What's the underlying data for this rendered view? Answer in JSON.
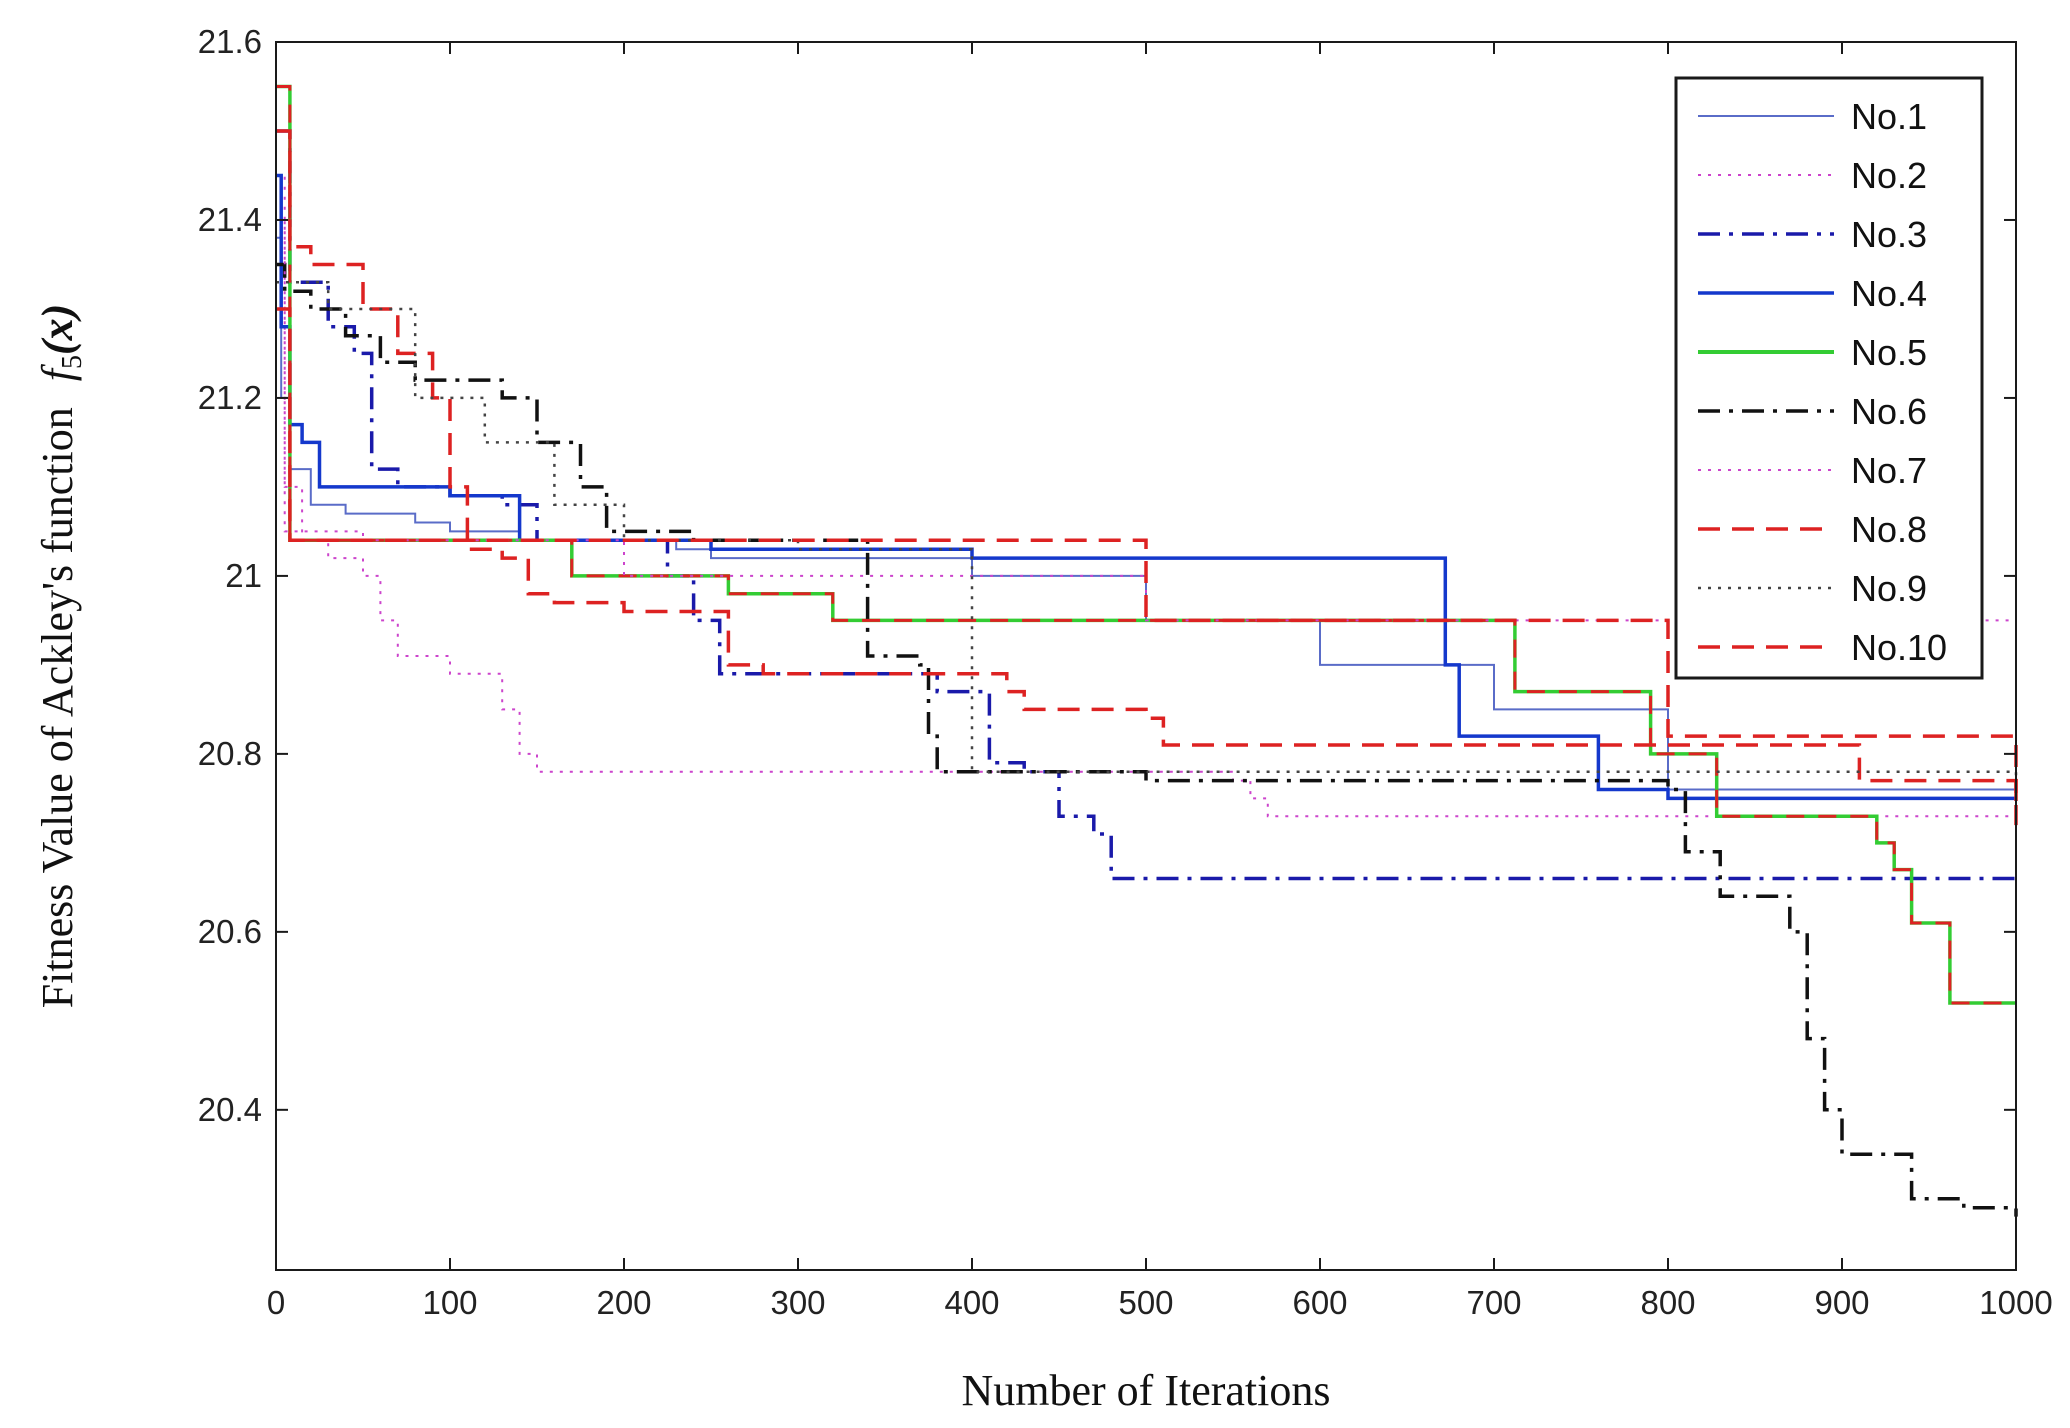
{
  "chart_data": {
    "type": "line",
    "title": "",
    "xlabel": "Number of Iterations",
    "ylabel": "Fitness Value of Ackley's function",
    "ylabel_math": "f",
    "ylabel_math_sub": "5",
    "ylabel_math_arg": "(x)",
    "xlim": [
      0,
      1000
    ],
    "ylim": [
      20.22,
      21.6
    ],
    "xticks": [
      0,
      100,
      200,
      300,
      400,
      500,
      600,
      700,
      800,
      900,
      1000
    ],
    "xtick_labels": [
      "0",
      "100",
      "200",
      "300",
      "400",
      "500",
      "600",
      "700",
      "800",
      "900",
      "1000"
    ],
    "yticks": [
      20.4,
      20.6,
      20.8,
      21.0,
      21.2,
      21.4,
      21.6
    ],
    "ytick_labels": [
      "20.4",
      "20.6",
      "20.8",
      "21",
      "21.2",
      "21.4",
      "21.6"
    ],
    "legend_position": "top-right",
    "grid": false,
    "series": [
      {
        "name": "No.1",
        "color": "#5a6cc8",
        "dash": "solid",
        "width": 2,
        "x": [
          0,
          3,
          8,
          20,
          40,
          80,
          100,
          140,
          180,
          230,
          250,
          300,
          400,
          500,
          600,
          700,
          800,
          1000
        ],
        "y": [
          21.38,
          21.2,
          21.12,
          21.08,
          21.07,
          21.06,
          21.05,
          21.04,
          21.04,
          21.03,
          21.02,
          21.02,
          21.0,
          20.95,
          20.9,
          20.85,
          20.76,
          20.75
        ]
      },
      {
        "name": "No.2",
        "color": "#cc44cc",
        "dash": "dot",
        "width": 2,
        "x": [
          0,
          5,
          15,
          30,
          50,
          60,
          70,
          100,
          130,
          140,
          150,
          200,
          300,
          400,
          550,
          560,
          570,
          600,
          700,
          800,
          900,
          1000
        ],
        "y": [
          21.45,
          21.1,
          21.04,
          21.02,
          21.0,
          20.95,
          20.91,
          20.89,
          20.85,
          20.8,
          20.78,
          20.78,
          20.78,
          20.78,
          20.77,
          20.75,
          20.73,
          20.73,
          20.73,
          20.73,
          20.73,
          20.73
        ]
      },
      {
        "name": "No.3",
        "color": "#1a1aaa",
        "dash": "dashdot",
        "width": 3.5,
        "x": [
          0,
          8,
          30,
          45,
          55,
          70,
          100,
          130,
          150,
          200,
          225,
          240,
          255,
          300,
          380,
          400,
          410,
          430,
          450,
          470,
          480,
          600,
          800,
          1000
        ],
        "y": [
          21.5,
          21.33,
          21.28,
          21.25,
          21.12,
          21.1,
          21.09,
          21.08,
          21.04,
          21.04,
          21.0,
          20.95,
          20.89,
          20.89,
          20.87,
          20.87,
          20.79,
          20.78,
          20.73,
          20.71,
          20.66,
          20.66,
          20.66,
          20.66
        ]
      },
      {
        "name": "No.4",
        "color": "#1438cc",
        "dash": "solid",
        "width": 3.5,
        "x": [
          0,
          3,
          8,
          15,
          25,
          100,
          140,
          250,
          400,
          600,
          670,
          672,
          680,
          750,
          760,
          800,
          1000
        ],
        "y": [
          21.45,
          21.28,
          21.17,
          21.15,
          21.1,
          21.09,
          21.04,
          21.03,
          21.02,
          21.02,
          21.02,
          20.9,
          20.82,
          20.82,
          20.76,
          20.75,
          20.75
        ]
      },
      {
        "name": "No.5",
        "color": "#33cc33",
        "dash": "solid",
        "width": 3.5,
        "x": [
          0,
          8,
          100,
          170,
          260,
          320,
          500,
          700,
          712,
          780,
          790,
          828,
          850,
          900,
          920,
          930,
          940,
          962,
          1000
        ],
        "y": [
          21.55,
          21.04,
          21.04,
          21.0,
          20.98,
          20.95,
          20.95,
          20.95,
          20.87,
          20.87,
          20.8,
          20.73,
          20.73,
          20.73,
          20.7,
          20.67,
          20.61,
          20.52,
          20.52
        ]
      },
      {
        "name": "No.6",
        "color": "#111111",
        "dash": "dashdot",
        "width": 3.5,
        "x": [
          0,
          5,
          20,
          40,
          60,
          80,
          130,
          150,
          175,
          190,
          240,
          300,
          335,
          340,
          370,
          375,
          380,
          400,
          500,
          600,
          700,
          800,
          810,
          830,
          840,
          870,
          880,
          890,
          900,
          930,
          940,
          970,
          1000
        ],
        "y": [
          21.35,
          21.32,
          21.3,
          21.27,
          21.24,
          21.22,
          21.2,
          21.15,
          21.1,
          21.05,
          21.04,
          21.04,
          21.04,
          20.91,
          20.9,
          20.82,
          20.78,
          20.78,
          20.77,
          20.77,
          20.77,
          20.76,
          20.69,
          20.64,
          20.64,
          20.6,
          20.48,
          20.4,
          20.35,
          20.35,
          20.3,
          20.29,
          20.28
        ]
      },
      {
        "name": "No.7",
        "color": "#cc44cc",
        "dash": "dot",
        "width": 2,
        "x": [
          0,
          5,
          50,
          200,
          500,
          1000
        ],
        "y": [
          21.4,
          21.05,
          21.04,
          21.0,
          20.95,
          20.9
        ]
      },
      {
        "name": "No.8",
        "color": "#dd2222",
        "dash": "dash",
        "width": 3.5,
        "x": [
          0,
          8,
          20,
          50,
          70,
          90,
          100,
          110,
          130,
          145,
          160,
          200,
          260,
          280,
          300,
          400,
          420,
          430,
          500,
          510,
          600,
          700,
          800,
          900,
          910,
          1000
        ],
        "y": [
          21.5,
          21.37,
          21.35,
          21.3,
          21.25,
          21.2,
          21.1,
          21.03,
          21.02,
          20.98,
          20.97,
          20.96,
          20.9,
          20.89,
          20.89,
          20.89,
          20.87,
          20.85,
          20.84,
          20.81,
          20.81,
          20.81,
          20.81,
          20.81,
          20.77,
          20.72
        ]
      },
      {
        "name": "No.9",
        "color": "#444444",
        "dash": "dot",
        "width": 2.5,
        "x": [
          0,
          30,
          80,
          120,
          160,
          200,
          300,
          400,
          500,
          1000
        ],
        "y": [
          21.33,
          21.3,
          21.2,
          21.15,
          21.08,
          21.04,
          21.03,
          20.78,
          20.78,
          20.77
        ]
      },
      {
        "name": "No.10",
        "color": "#dd2222",
        "dash": "dash",
        "width": 3.5,
        "x": [
          0,
          8,
          100,
          500,
          800,
          1000
        ],
        "y": [
          21.3,
          21.04,
          21.04,
          20.95,
          20.82,
          20.74
        ]
      }
    ]
  }
}
